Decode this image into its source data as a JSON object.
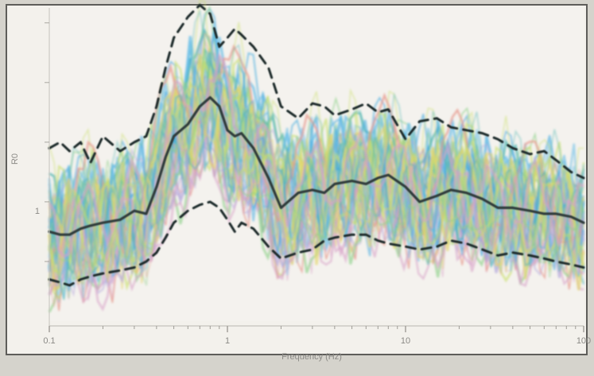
{
  "chart_data": {
    "type": "line",
    "title": "",
    "xlabel": "Frequency (Hz)",
    "ylabel": "R0",
    "x_scale": "log",
    "xlim": [
      0.1,
      100
    ],
    "ylim": [
      0.0,
      1.05
    ],
    "grid": false,
    "legend": "none",
    "x_tick_labels": [
      "0.1",
      "1",
      "10",
      "100"
    ],
    "y_tick_labels": [
      "1"
    ],
    "background_ensemble": {
      "description_shown": "many overlapping thin colored traces",
      "colors": [
        "#3fa9e0",
        "#6cc0e8",
        "#8fd18a",
        "#c9e06b",
        "#e4d66b",
        "#d8a2c8",
        "#b3a6dc",
        "#e79a8e",
        "#4fb5b0"
      ],
      "count_visible": 60
    },
    "x": [
      0.1,
      0.115,
      0.13,
      0.15,
      0.17,
      0.2,
      0.25,
      0.3,
      0.35,
      0.4,
      0.45,
      0.5,
      0.6,
      0.7,
      0.8,
      0.9,
      1.0,
      1.1,
      1.2,
      1.4,
      1.7,
      2.0,
      2.5,
      3.0,
      3.5,
      4.0,
      5.0,
      6.0,
      7.0,
      8.0,
      10.0,
      12.0,
      15.0,
      18.0,
      22.0,
      27.0,
      33.0,
      40.0,
      50.0,
      60.0,
      70.0,
      85.0,
      100.0
    ],
    "series": [
      {
        "role": "median",
        "style": "solid",
        "color": "#2f3b3a",
        "values": [
          0.3,
          0.29,
          0.29,
          0.31,
          0.32,
          0.33,
          0.34,
          0.37,
          0.36,
          0.45,
          0.55,
          0.62,
          0.66,
          0.72,
          0.75,
          0.72,
          0.64,
          0.62,
          0.63,
          0.58,
          0.48,
          0.38,
          0.43,
          0.44,
          0.43,
          0.46,
          0.47,
          0.46,
          0.48,
          0.49,
          0.45,
          0.4,
          0.42,
          0.44,
          0.43,
          0.41,
          0.38,
          0.38,
          0.37,
          0.36,
          0.36,
          0.35,
          0.33
        ]
      },
      {
        "role": "upper-bound",
        "style": "dashed",
        "color": "#1f2a2a",
        "values": [
          0.58,
          0.6,
          0.57,
          0.6,
          0.53,
          0.62,
          0.57,
          0.6,
          0.62,
          0.72,
          0.85,
          0.95,
          1.02,
          1.06,
          1.03,
          0.92,
          0.95,
          0.98,
          0.96,
          0.92,
          0.85,
          0.72,
          0.68,
          0.73,
          0.72,
          0.69,
          0.71,
          0.73,
          0.7,
          0.71,
          0.61,
          0.67,
          0.68,
          0.65,
          0.64,
          0.63,
          0.61,
          0.58,
          0.56,
          0.57,
          0.54,
          0.5,
          0.48
        ]
      },
      {
        "role": "lower-bound",
        "style": "dashed",
        "color": "#1f2a2a",
        "values": [
          0.14,
          0.13,
          0.12,
          0.14,
          0.15,
          0.16,
          0.17,
          0.18,
          0.2,
          0.23,
          0.28,
          0.33,
          0.37,
          0.39,
          0.4,
          0.38,
          0.34,
          0.3,
          0.33,
          0.31,
          0.25,
          0.21,
          0.23,
          0.24,
          0.27,
          0.28,
          0.29,
          0.29,
          0.27,
          0.26,
          0.25,
          0.24,
          0.25,
          0.27,
          0.26,
          0.24,
          0.22,
          0.23,
          0.22,
          0.21,
          0.2,
          0.19,
          0.18
        ]
      }
    ]
  }
}
